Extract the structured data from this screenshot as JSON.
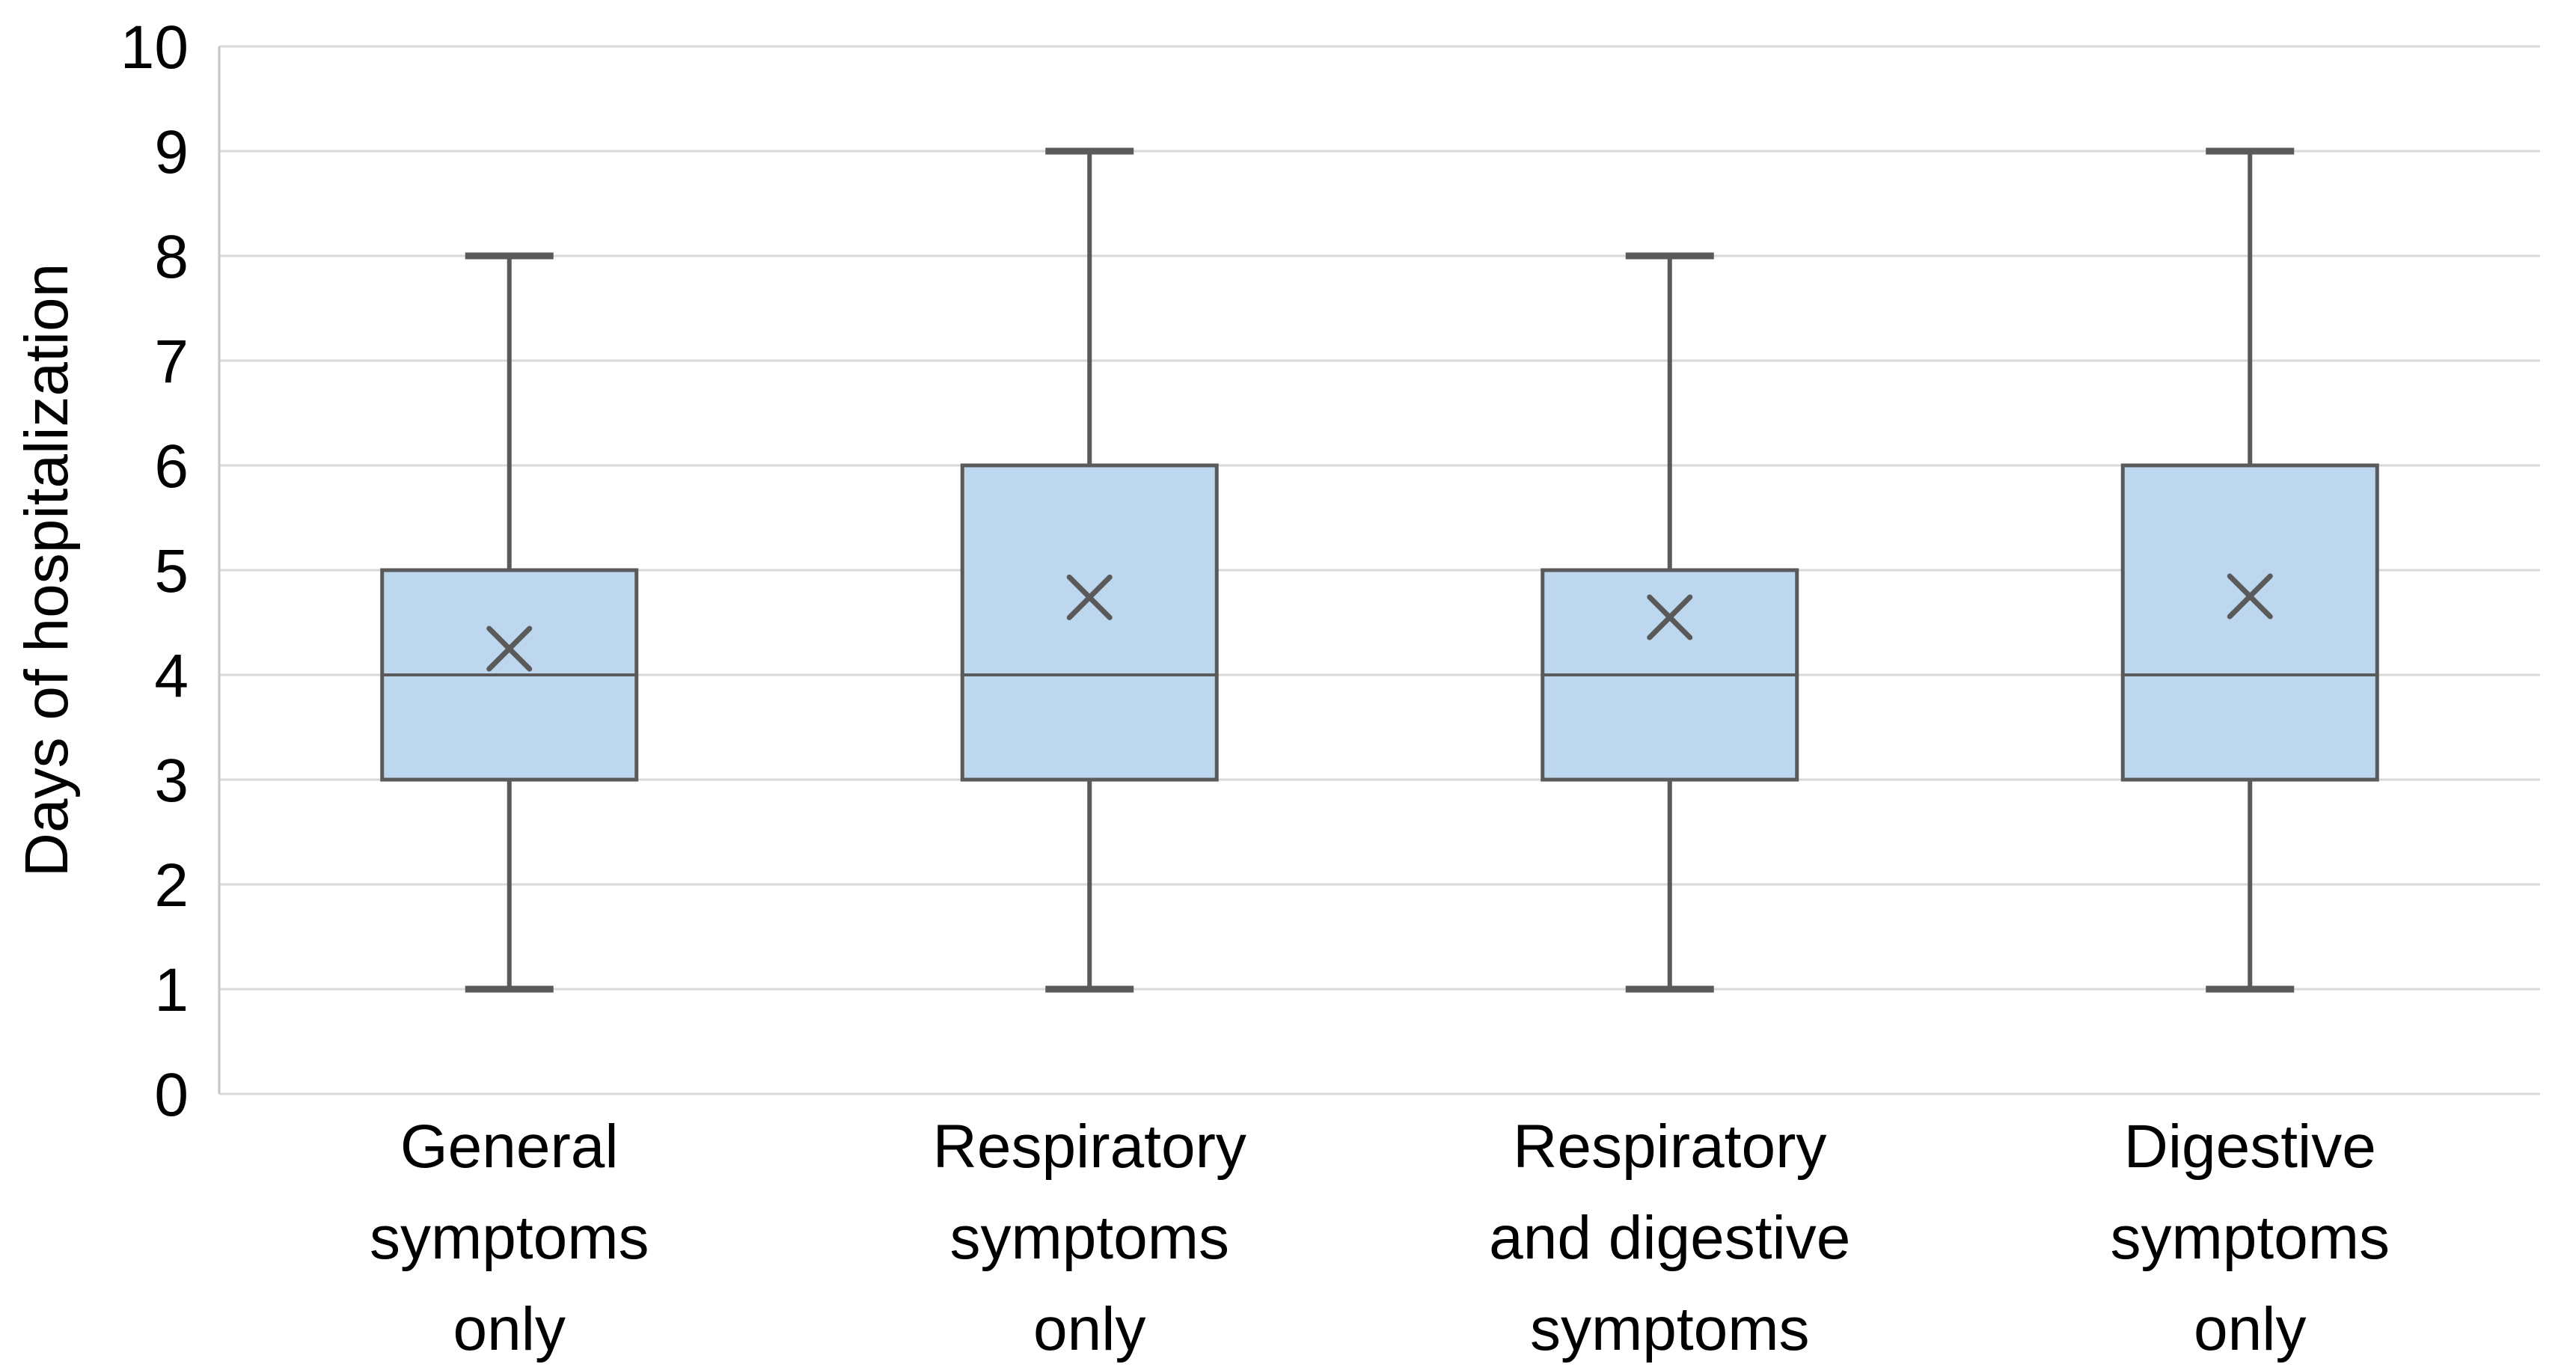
{
  "chart_data": {
    "type": "boxplot",
    "title": "",
    "xlabel": "",
    "ylabel": "Days of hospitalization",
    "ylim": [
      0,
      10
    ],
    "ytick_step": 1,
    "yticks": [
      "0",
      "1",
      "2",
      "3",
      "4",
      "5",
      "6",
      "7",
      "8",
      "9",
      "10"
    ],
    "grid": true,
    "legend": "none",
    "categories": [
      "General symptoms only",
      "Respiratory symptoms only",
      "Respiratory and digestive symptoms",
      "Digestive symptoms only"
    ],
    "category_label_lines": [
      [
        "General",
        "symptoms",
        "only"
      ],
      [
        "Respiratory",
        "symptoms",
        "only"
      ],
      [
        "Respiratory",
        "and digestive",
        "symptoms"
      ],
      [
        "Digestive",
        "symptoms",
        "only"
      ]
    ],
    "series": [
      {
        "name": "General symptoms only",
        "min": 1,
        "q1": 3,
        "median": 4,
        "q3": 5,
        "max": 8,
        "mean": 4.25
      },
      {
        "name": "Respiratory symptoms only",
        "min": 1,
        "q1": 3,
        "median": 4,
        "q3": 6,
        "max": 9,
        "mean": 4.74
      },
      {
        "name": "Respiratory and digestive symptoms",
        "min": 1,
        "q1": 3,
        "median": 4,
        "q3": 5,
        "max": 8,
        "mean": 4.55
      },
      {
        "name": "Digestive symptoms only",
        "min": 1,
        "q1": 3,
        "median": 4,
        "q3": 6,
        "max": 9,
        "mean": 4.75
      }
    ],
    "colors": {
      "box_fill": "#BDD7EE",
      "box_stroke": "#5A5A5A",
      "whisker": "#5A5A5A",
      "median": "#5A5A5A",
      "mean_marker": "#5A5A5A",
      "gridline": "#D9D9D9",
      "axis_line": "#C6C6C6",
      "text": "#000000"
    }
  }
}
